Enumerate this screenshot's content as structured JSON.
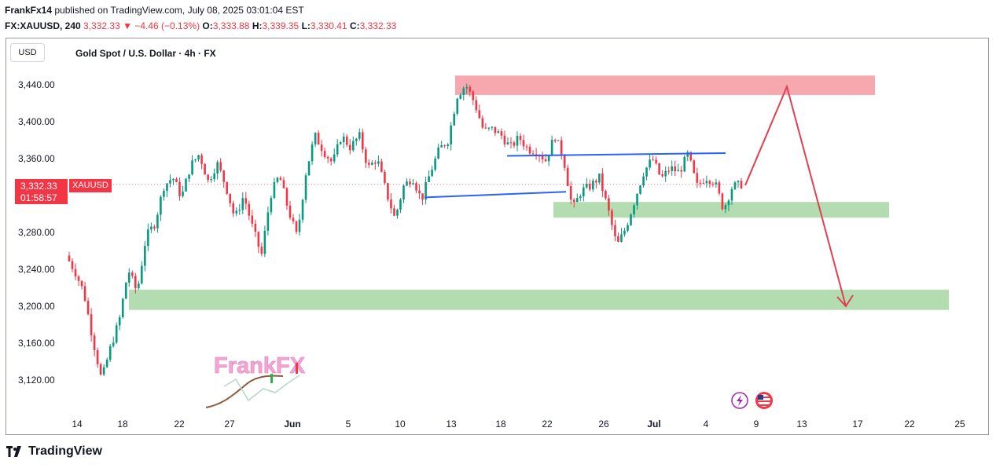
{
  "header": {
    "author": "FrankFx14",
    "published_text": "published on TradingView.com, July 08, 2025 03:01:04 EST",
    "symbol": "FX:XAUUSD, 240",
    "last": "3,332.33",
    "change": "−4.46 (−0.13%)",
    "o_label": "O:",
    "o_value": "3,333.88",
    "h_label": "H:",
    "h_value": "3,339.35",
    "l_label": "L:",
    "l_value": "3,330.41",
    "c_label": "C:",
    "c_value": "3,332.33"
  },
  "chart_ui": {
    "currency_button": "USD",
    "title": "Gold Spot / U.S. Dollar · 4h · FX",
    "price_tag_value": "3,332.33",
    "price_tag_countdown": "01:58:57",
    "symbol_tag": "XAUUSD",
    "watermark": "FrankFX"
  },
  "footer": {
    "logo_text": "TradingView"
  },
  "colors": {
    "up": "#089981",
    "down": "#f23645",
    "resistance_zone": "#f7a7ae",
    "support_zone": "#b3dcb0",
    "trendline": "#2962ff",
    "projection": "#e2404f"
  },
  "chart_data": {
    "type": "candlestick",
    "y_ticks": [
      3120,
      3160,
      3200,
      3240,
      3280,
      3320,
      3360,
      3400,
      3440
    ],
    "y_tick_labels": [
      "3,120.00",
      "3,160.00",
      "3,200.00",
      "3,240.00",
      "3,280.00",
      "3,320.00",
      "3,360.00",
      "3,400.00",
      "3,440.00"
    ],
    "x_tick_labels": [
      "14",
      "18",
      "22",
      "27",
      "Jun",
      "5",
      "10",
      "13",
      "18",
      "22",
      "26",
      "Jul",
      "4",
      "9",
      "13",
      "17",
      "22",
      "25"
    ],
    "ylim": [
      3096,
      3474
    ],
    "price_path": [
      3255,
      3238,
      3215,
      3165,
      3120,
      3155,
      3185,
      3240,
      3215,
      3275,
      3290,
      3330,
      3340,
      3318,
      3352,
      3365,
      3335,
      3355,
      3330,
      3295,
      3320,
      3285,
      3255,
      3320,
      3342,
      3305,
      3275,
      3345,
      3385,
      3368,
      3355,
      3385,
      3372,
      3385,
      3350,
      3360,
      3325,
      3295,
      3330,
      3340,
      3315,
      3345,
      3370,
      3380,
      3428,
      3440,
      3420,
      3390,
      3392,
      3385,
      3372,
      3383,
      3370,
      3368,
      3358,
      3385,
      3360,
      3305,
      3325,
      3330,
      3340,
      3305,
      3265,
      3285,
      3315,
      3345,
      3360,
      3338,
      3350,
      3345,
      3365,
      3330,
      3340,
      3335,
      3305,
      3330,
      3332
    ],
    "zones": [
      {
        "type": "resistance",
        "from": 3429,
        "to": 3450
      },
      {
        "type": "support",
        "from": 3296,
        "to": 3313
      },
      {
        "type": "support",
        "from": 3196,
        "to": 3218
      }
    ],
    "trendlines": [
      {
        "points": [
          [
            3318,
            3324
          ]
        ]
      },
      {
        "points": [
          [
            3363,
            3366
          ]
        ]
      }
    ],
    "projection": [
      3331,
      3438,
      3200
    ],
    "last_price": 3332.33
  }
}
